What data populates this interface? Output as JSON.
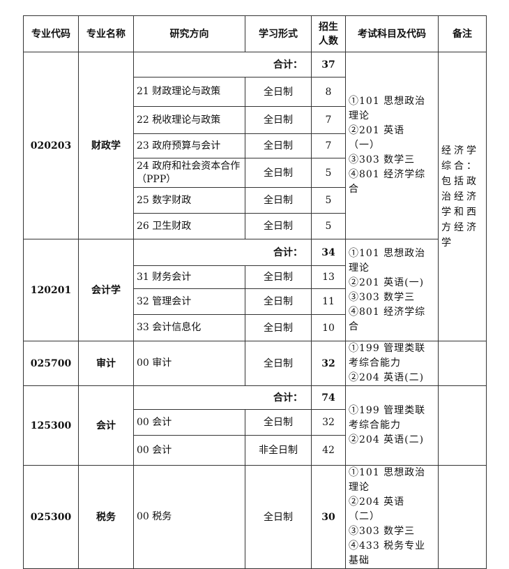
{
  "headers": [
    "专业代码",
    "专业名称",
    "研究方向",
    "学习形式",
    "招生人数",
    "考试科目及代码",
    "备注"
  ],
  "total_label": "合计：",
  "groups": [
    {
      "code": "020203",
      "name": "财政学",
      "total": "37",
      "rows": [
        [
          "21  财政理论与政策",
          "全日制",
          "8"
        ],
        [
          "22  税收理论与政策",
          "全日制",
          "7"
        ],
        [
          "23  政府预算与会计",
          "全日制",
          "7"
        ],
        [
          "24 政府和社会资本合作（PPP）",
          "全日制",
          "5"
        ],
        [
          "25 数字财政",
          "全日制",
          "5"
        ],
        [
          "26 卫生财政",
          "全日制",
          "5"
        ]
      ],
      "exam": "①101 思想政治理论\n②201 英语（一）\n③303 数学三\n④801 经济学综合",
      "note": "经济学综合：包括政治经济学和西方经济学"
    },
    {
      "code": "120201",
      "name": "会计学",
      "total": "34",
      "rows": [
        [
          "31 财务会计",
          "全日制",
          "13"
        ],
        [
          "32 管理会计",
          "全日制",
          "11"
        ],
        [
          "33 会计信息化",
          "全日制",
          "10"
        ]
      ],
      "exam": "①101 思想政治理论\n②201 英语(一)\n③303 数学三\n④801 经济学综合"
    },
    {
      "code": "025700",
      "name": "审计",
      "total": null,
      "rows": [
        [
          "00 审计",
          "全日制",
          "32"
        ]
      ],
      "exam": "①199 管理类联考综合能力\n②204 英语(二)",
      "note": ""
    },
    {
      "code": "125300",
      "name": "会计",
      "total": "74",
      "rows": [
        [
          "00 会计",
          "全日制",
          "32"
        ],
        [
          "00 会计",
          "非全日制",
          "42"
        ]
      ],
      "exam": "①199 管理类联考综合能力\n②204 英语(二)",
      "note": ""
    },
    {
      "code": "025300",
      "name": "税务",
      "total": null,
      "rows": [
        [
          "00 税务",
          "全日制",
          "30"
        ]
      ],
      "exam": "①101 思想政治理论\n②204 英语（二）\n③303 数学三\n④433 税务专业基础",
      "note": ""
    }
  ]
}
